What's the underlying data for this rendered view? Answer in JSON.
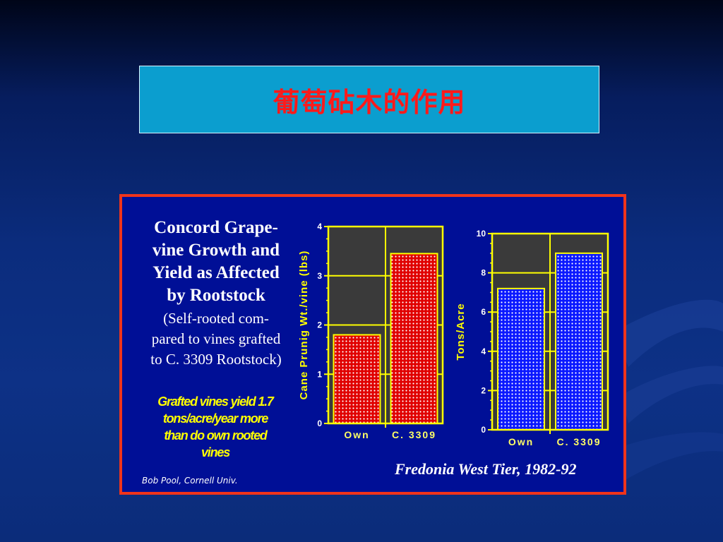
{
  "slide_title": "葡萄砧木的作用",
  "figure": {
    "heading_lines": [
      "Concord Grape-",
      "vine Growth and",
      "Yield as Affected",
      "by Rootstock"
    ],
    "subheading_lines": [
      "(Self-rooted com-",
      "pared to vines grafted",
      "to C. 3309 Rootstock)"
    ],
    "note_lines": [
      "Grafted vines yield 1.7",
      "tons/acre/year more",
      "than do own rooted",
      "vines"
    ],
    "credit": "Bob Pool, Cornell Univ.",
    "source": "Fredonia West Tier, 1982-92"
  },
  "colors": {
    "background": "#0b2c7d",
    "title_box": "#0b9ecf",
    "title_text": "#ff1a1a",
    "figure_bg": "#000f96",
    "figure_border": "#f0341b",
    "axis": "#ffff00",
    "plot_bg": "#3a3a3a"
  },
  "chart_data": [
    {
      "type": "bar",
      "categories": [
        "Own",
        "C. 3309"
      ],
      "values": [
        1.8,
        3.45
      ],
      "ylabel": "Cane Prunig Wt./vine (lbs)",
      "xlabel": "",
      "ylim": [
        0,
        4
      ],
      "yticks": [
        0,
        1,
        2,
        3,
        4
      ],
      "bar_color": "#e00000",
      "grid": true
    },
    {
      "type": "bar",
      "categories": [
        "Own",
        "C. 3309"
      ],
      "values": [
        7.2,
        9.0
      ],
      "ylabel": "Tons/Acre",
      "xlabel": "",
      "ylim": [
        0,
        10
      ],
      "yticks": [
        0,
        2,
        4,
        6,
        8,
        10
      ],
      "bar_color": "#0a18ff",
      "grid": true
    }
  ]
}
